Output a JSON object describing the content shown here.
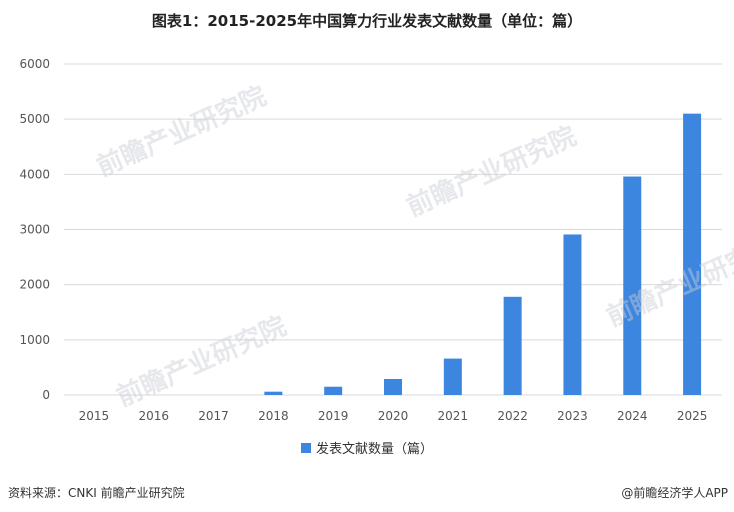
{
  "title": "图表1：2015-2025年中国算力行业发表文献数量（单位：篇）",
  "legend_label": "发表文献数量（篇）",
  "source": "资料来源：CNKI 前瞻产业研究院",
  "brand": "@前瞻经济学人APP",
  "watermark": "前瞻产业研究院",
  "colors": {
    "bar": "#3c86e0",
    "grid": "#d9d9d9"
  },
  "chart_data": {
    "type": "bar",
    "title": "图表1：2015-2025年中国算力行业发表文献数量（单位：篇）",
    "categories": [
      "2015",
      "2016",
      "2017",
      "2018",
      "2019",
      "2020",
      "2021",
      "2022",
      "2023",
      "2024",
      "2025"
    ],
    "series": [
      {
        "name": "发表文献数量（篇）",
        "values": [
          0,
          0,
          0,
          60,
          150,
          290,
          660,
          1780,
          2910,
          3960,
          5100
        ]
      }
    ],
    "yticks": [
      0,
      1000,
      2000,
      3000,
      4000,
      5000,
      6000
    ],
    "ylim": [
      0,
      6000
    ],
    "grid": true,
    "legend_position": "bottom"
  }
}
